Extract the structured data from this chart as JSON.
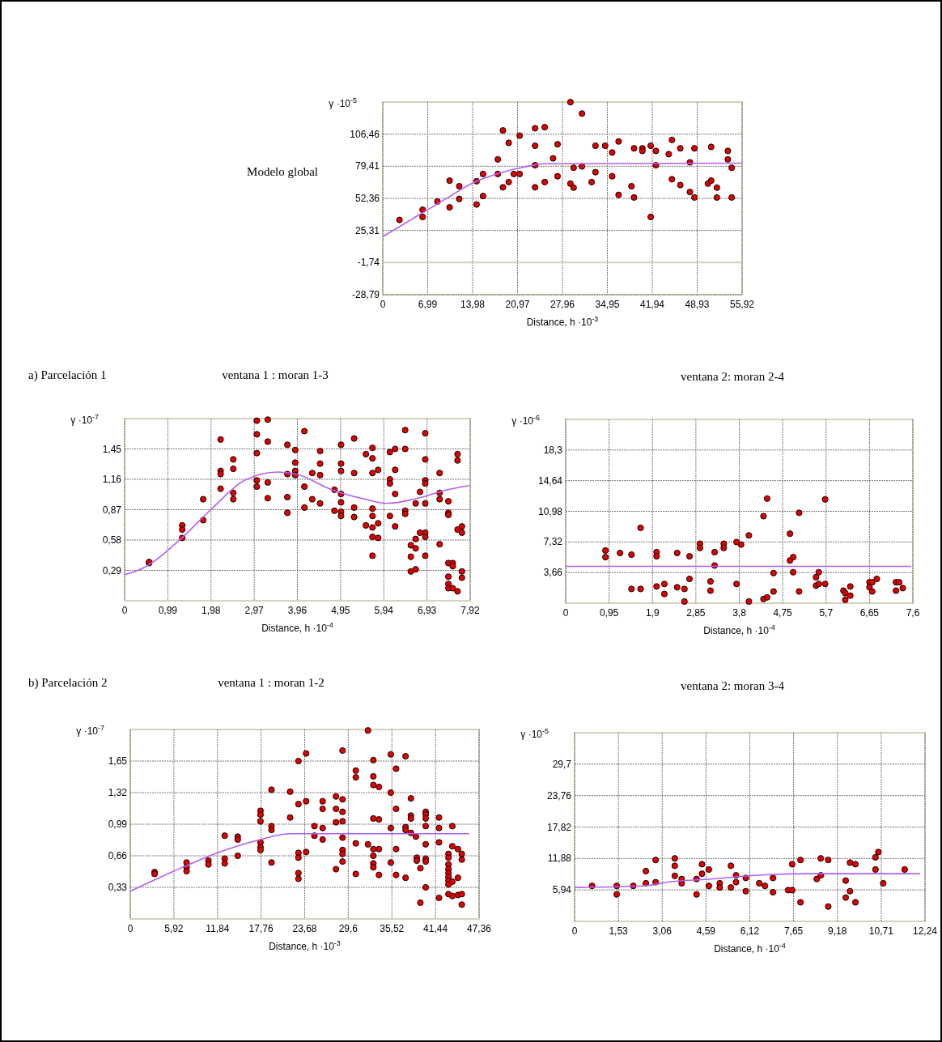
{
  "chart_data": [
    {
      "type": "scatter",
      "title": "Modelo global",
      "ylabel": "γ ·10$^{-5}$",
      "xlabel": "Distance, h ·10$^{-3}$",
      "xlim": [
        0,
        55.92
      ],
      "ylim": [
        -28.79,
        133.51
      ],
      "xticks": [
        {
          "value": 0,
          "label": "0"
        },
        {
          "value": 6.99,
          "label": "6,99"
        },
        {
          "value": 13.98,
          "label": "13,98"
        },
        {
          "value": 20.97,
          "label": "20,97"
        },
        {
          "value": 27.96,
          "label": "27,96"
        },
        {
          "value": 34.95,
          "label": "34,95"
        },
        {
          "value": 41.94,
          "label": "41,94"
        },
        {
          "value": 48.93,
          "label": "48,93"
        },
        {
          "value": 55.92,
          "label": "55,92"
        }
      ],
      "yticks": [
        {
          "value": -28.79,
          "label": "-28,79"
        },
        {
          "value": -1.74,
          "label": "-1,74"
        },
        {
          "value": 25.31,
          "label": "25,31"
        },
        {
          "value": 52.36,
          "label": "52,36"
        },
        {
          "value": 79.41,
          "label": "79,41"
        },
        {
          "value": 106.46,
          "label": "106,46"
        }
      ],
      "grid": true,
      "ref_lines": [
        {
          "axis": "y",
          "value": -1.74,
          "color": "#d6d2bd"
        }
      ],
      "series": [
        {
          "color": "#e00000",
          "marker": "circle",
          "x": [
            2.6,
            6.2,
            6.2,
            8.5,
            10.4,
            10.4,
            11.9,
            11.9,
            14.6,
            14.6,
            15.6,
            15.6,
            17.9,
            17.9,
            18.7,
            18.7,
            19.6,
            19.6,
            20.4,
            21.3,
            21.3,
            23.7,
            23.7,
            23.7,
            23.7,
            25.2,
            25.2,
            26.5,
            27.2,
            27.2,
            29.2,
            29.2,
            29.7,
            29.7,
            31.0,
            31.0,
            32.5,
            33.1,
            33.1,
            34.6,
            35.7,
            35.7,
            36.7,
            36.7,
            38.7,
            39.1,
            39.1,
            40.4,
            40.4,
            41.7,
            41.7,
            42.5,
            42.5,
            44.5,
            45.0,
            45.0,
            46.3,
            46.3,
            47.8,
            47.8,
            48.5,
            48.5,
            50.6,
            51.1,
            51.1,
            52.0,
            52.0,
            53.7,
            53.7,
            54.3,
            54.3
          ],
          "values": [
            34.2,
            42.8,
            36.7,
            49.7,
            67.3,
            44.8,
            62.6,
            51.9,
            66.8,
            47.2,
            72.9,
            54.3,
            85.2,
            72.9,
            109.6,
            61.7,
            99.1,
            66.1,
            72.9,
            105.2,
            72.9,
            111.4,
            96.7,
            80.3,
            61.7,
            112.3,
            66.1,
            86.1,
            97.9,
            71.0,
            133.4,
            64.8,
            78.1,
            61.4,
            123.8,
            79.3,
            66.1,
            96.7,
            74.4,
            96.7,
            91.0,
            71.0,
            100.3,
            55.3,
            62.6,
            94.5,
            53.1,
            94.5,
            92.3,
            96.7,
            36.7,
            92.3,
            80.3,
            89.6,
            101.6,
            68.5,
            94.5,
            63.6,
            82.7,
            57.7,
            94.5,
            53.1,
            64.8,
            95.7,
            67.3,
            61.4,
            53.1,
            92.3,
            85.2,
            78.1,
            53.1
          ]
        },
        {
          "type": "line",
          "color": "#b060f0",
          "x": [
            0,
            6.24,
            10,
            14,
            18,
            22,
            25.2,
            55.92
          ],
          "values": [
            20.1,
            40.4,
            52.6,
            65.3,
            73.4,
            78.8,
            81.5,
            82.0
          ]
        }
      ]
    },
    {
      "type": "scatter",
      "title": "ventana 1 : moran 1-3",
      "annotations": [
        "a) Parcelación 1"
      ],
      "ylabel": "γ ·10$^{-7}$",
      "xlabel": "Distance, h ·10$^{-4}$",
      "xlim": [
        0,
        7.92
      ],
      "ylim": [
        0,
        1.74
      ],
      "xticks": [
        {
          "value": 0,
          "label": "0"
        },
        {
          "value": 0.99,
          "label": "0,99"
        },
        {
          "value": 1.98,
          "label": "1,98"
        },
        {
          "value": 2.97,
          "label": "2,97"
        },
        {
          "value": 3.96,
          "label": "3,96"
        },
        {
          "value": 4.95,
          "label": "4,95"
        },
        {
          "value": 5.94,
          "label": "5,94"
        },
        {
          "value": 6.93,
          "label": "6,93"
        },
        {
          "value": 7.92,
          "label": "7,92"
        }
      ],
      "yticks": [
        {
          "value": 0.29,
          "label": "0,29"
        },
        {
          "value": 0.58,
          "label": "0,58"
        },
        {
          "value": 0.87,
          "label": "0,87"
        },
        {
          "value": 1.16,
          "label": "1,16"
        },
        {
          "value": 1.45,
          "label": "1,45"
        }
      ],
      "grid": true,
      "series": [
        {
          "color": "#e00000",
          "marker": "circle",
          "x": [
            0.56,
            0.56,
            1.32,
            1.32,
            1.32,
            1.8,
            1.8,
            2.2,
            2.2,
            2.2,
            2.2,
            2.49,
            2.49,
            2.49,
            2.49,
            3.03,
            3.03,
            3.03,
            3.03,
            3.03,
            3.28,
            3.28,
            3.28,
            3.28,
            3.73,
            3.73,
            3.73,
            3.73,
            3.91,
            3.91,
            3.91,
            3.91,
            4.12,
            4.12,
            4.12,
            4.3,
            4.3,
            4.48,
            4.48,
            4.48,
            4.48,
            4.81,
            4.81,
            4.96,
            4.96,
            4.96,
            4.96,
            4.96,
            4.96,
            4.96,
            5.26,
            5.26,
            5.26,
            5.26,
            5.53,
            5.53,
            5.68,
            5.68,
            5.68,
            5.68,
            5.68,
            5.68,
            5.68,
            5.68,
            5.81,
            5.81,
            5.81,
            6.08,
            6.08,
            6.08,
            6.08,
            6.2,
            6.2,
            6.2,
            6.2,
            6.43,
            6.43,
            6.43,
            6.43,
            6.56,
            6.56,
            6.56,
            6.67,
            6.67,
            6.67,
            6.67,
            6.77,
            6.77,
            6.89,
            6.89,
            6.89,
            6.89,
            6.89,
            6.89,
            6.89,
            6.89,
            7.22,
            7.22,
            7.22,
            7.22,
            7.42,
            7.42,
            7.42,
            7.42,
            7.42,
            7.42,
            7.42,
            7.52,
            7.52,
            7.52,
            7.63,
            7.63,
            7.63,
            7.63,
            7.73,
            7.73,
            7.73,
            7.73
          ],
          "values": [
            0.36,
            0.37,
            0.72,
            0.68,
            0.6,
            0.77,
            0.97,
            1.54,
            1.24,
            1.21,
            1.07,
            1.35,
            1.26,
            1.03,
            0.97,
            1.72,
            1.59,
            1.41,
            1.15,
            1.09,
            1.73,
            1.52,
            1.13,
            0.98,
            1.49,
            1.21,
            0.99,
            0.84,
            1.44,
            1.32,
            1.24,
            1.2,
            1.62,
            1.09,
            0.89,
            1.22,
            0.97,
            1.43,
            1.31,
            1.2,
            0.93,
            1.06,
            0.86,
            1.49,
            1.31,
            1.24,
            1.02,
            0.94,
            0.85,
            0.81,
            1.55,
            1.22,
            0.89,
            0.8,
            1.4,
            0.72,
            1.46,
            1.36,
            1.22,
            0.88,
            0.81,
            0.7,
            0.61,
            0.43,
            1.25,
            0.74,
            0.6,
            1.42,
            1.16,
            1.12,
            0.81,
            1.45,
            1.25,
            1.02,
            0.71,
            1.63,
            1.45,
            0.86,
            0.83,
            0.53,
            0.42,
            0.28,
            0.59,
            0.5,
            0.3,
            0.93,
            0.65,
            1.04,
            1.6,
            1.35,
            1.15,
            1.12,
            0.93,
            0.65,
            0.61,
            0.43,
            1.22,
            1.03,
            0.97,
            0.54,
            0.95,
            0.84,
            0.82,
            0.36,
            0.23,
            0.16,
            0.12,
            0.36,
            0.33,
            0.12,
            1.4,
            1.34,
            0.68,
            0.09,
            0.71,
            0.65,
            0.28,
            0.22
          ]
        },
        {
          "type": "line",
          "color": "#b060f0",
          "x": [
            0,
            0.41,
            1.31,
            2.0,
            2.75,
            3.51,
            3.93,
            4.75,
            5.51,
            5.99,
            6.82,
            7.3,
            7.89
          ],
          "values": [
            0.25,
            0.31,
            0.6,
            0.88,
            1.15,
            1.23,
            1.21,
            1.06,
            0.97,
            0.93,
            0.99,
            1.05,
            1.1
          ]
        }
      ]
    },
    {
      "type": "scatter",
      "title": "ventana 2: moran 2-4",
      "ylabel": "γ ·10$^{-6}$",
      "xlabel": "Distance, h ·10$^{-4}$",
      "xlim": [
        0,
        7.6
      ],
      "ylim": [
        0,
        21.96
      ],
      "xticks": [
        {
          "value": 0,
          "label": "0"
        },
        {
          "value": 0.95,
          "label": "0,95"
        },
        {
          "value": 1.9,
          "label": "1,9"
        },
        {
          "value": 2.85,
          "label": "2,85"
        },
        {
          "value": 3.8,
          "label": "3,8"
        },
        {
          "value": 4.75,
          "label": "4,75"
        },
        {
          "value": 5.7,
          "label": "5,7"
        },
        {
          "value": 6.65,
          "label": "6,65"
        },
        {
          "value": 7.6,
          "label": "7,6"
        }
      ],
      "yticks": [
        {
          "value": 3.66,
          "label": "3,66"
        },
        {
          "value": 7.32,
          "label": "7,32"
        },
        {
          "value": 10.98,
          "label": "10,98"
        },
        {
          "value": 14.64,
          "label": "14,64"
        },
        {
          "value": 18.3,
          "label": "18,3"
        }
      ],
      "grid": true,
      "series": [
        {
          "color": "#e00000",
          "marker": "circle",
          "x": [
            0.87,
            0.87,
            1.19,
            1.44,
            1.44,
            1.64,
            1.64,
            1.99,
            1.99,
            1.99,
            2.16,
            2.16,
            2.44,
            2.44,
            2.6,
            2.6,
            2.71,
            2.71,
            2.94,
            2.94,
            3.17,
            3.17,
            3.26,
            3.26,
            3.46,
            3.46,
            3.74,
            3.74,
            3.84,
            4.01,
            4.01,
            4.33,
            4.33,
            4.41,
            4.41,
            4.55,
            4.55,
            4.91,
            4.91,
            4.98,
            4.98,
            5.11,
            5.11,
            5.48,
            5.48,
            5.54,
            5.54,
            5.68,
            5.68,
            6.08,
            6.12,
            6.12,
            6.23,
            6.23,
            6.65,
            6.65,
            6.71,
            6.71,
            6.81,
            7.23,
            7.23,
            7.3,
            7.38
          ],
          "values": [
            6.3,
            5.5,
            6.0,
            5.8,
            1.7,
            9.0,
            1.7,
            6.1,
            5.6,
            2.0,
            2.3,
            1.1,
            6.0,
            1.9,
            1.7,
            0.2,
            5.6,
            2.9,
            7.1,
            6.6,
            2.6,
            1.5,
            6.1,
            4.5,
            7.1,
            6.6,
            7.3,
            2.3,
            7.0,
            8.1,
            0.2,
            10.4,
            0.5,
            0.7,
            12.5,
            3.6,
            1.4,
            8.3,
            5.1,
            5.5,
            3.7,
            10.8,
            1.4,
            3.1,
            2.1,
            3.7,
            2.3,
            12.4,
            2.3,
            1.5,
            1.2,
            0.4,
            2.0,
            0.9,
            2.5,
            1.9,
            2.5,
            1.4,
            2.9,
            2.5,
            1.5,
            2.5,
            1.8
          ]
        },
        {
          "type": "line",
          "color": "#b060f0",
          "x": [
            0,
            7.56
          ],
          "values": [
            4.4,
            4.4
          ]
        }
      ]
    },
    {
      "type": "scatter",
      "title": "ventana 1 : moran 1-2",
      "annotations": [
        "b) Parcelación 2"
      ],
      "ylabel": "γ ·10$^{-7}$",
      "xlabel": "Distance, h ·10$^{-3}$",
      "xlim": [
        0,
        47.36
      ],
      "ylim": [
        0,
        1.98
      ],
      "xticks": [
        {
          "value": 0,
          "label": "0"
        },
        {
          "value": 5.92,
          "label": "5,92"
        },
        {
          "value": 11.84,
          "label": "11,84"
        },
        {
          "value": 17.76,
          "label": "17,76"
        },
        {
          "value": 23.68,
          "label": "23,68"
        },
        {
          "value": 29.6,
          "label": "29,6"
        },
        {
          "value": 35.52,
          "label": "35,52"
        },
        {
          "value": 41.44,
          "label": "41,44"
        },
        {
          "value": 47.36,
          "label": "47,36"
        }
      ],
      "yticks": [
        {
          "value": 0.33,
          "label": "0,33"
        },
        {
          "value": 0.66,
          "label": "0,66"
        },
        {
          "value": 0.99,
          "label": "0,99"
        },
        {
          "value": 1.32,
          "label": "1,32"
        },
        {
          "value": 1.65,
          "label": "1,65"
        }
      ],
      "grid": true,
      "series": [
        {
          "color": "#e00000",
          "marker": "circle",
          "x": [
            3.3,
            3.3,
            7.64,
            7.64,
            7.64,
            10.61,
            10.61,
            12.82,
            12.82,
            12.82,
            14.59,
            14.59,
            14.59,
            17.68,
            17.68,
            17.68,
            17.68,
            17.68,
            17.68,
            19.17,
            19.17,
            19.17,
            19.17,
            21.7,
            21.7,
            22.83,
            22.83,
            22.83,
            22.83,
            22.83,
            22.83,
            23.87,
            23.87,
            23.87,
            25.0,
            25.0,
            26.12,
            26.12,
            26.12,
            26.12,
            27.93,
            27.93,
            27.93,
            27.93,
            28.82,
            28.82,
            28.82,
            28.82,
            28.82,
            28.82,
            28.82,
            28.82,
            30.62,
            30.62,
            30.62,
            30.62,
            32.27,
            32.27,
            33.0,
            33.0,
            33.0,
            33.0,
            33.0,
            33.0,
            33.0,
            33.0,
            33.76,
            33.76,
            33.76,
            33.76,
            35.37,
            35.37,
            35.37,
            35.37,
            36.09,
            36.09,
            36.09,
            36.09,
            37.38,
            37.38,
            37.38,
            37.38,
            38.1,
            38.1,
            38.1,
            38.1,
            38.78,
            38.9,
            38.9,
            39.39,
            39.39,
            40.11,
            40.11,
            40.11,
            40.11,
            40.11,
            40.11,
            40.11,
            40.11,
            41.92,
            41.92,
            41.92,
            41.92,
            43.2,
            43.2,
            43.2,
            43.2,
            43.2,
            43.2,
            43.2,
            43.2,
            43.2,
            43.73,
            43.73,
            43.73,
            43.73,
            44.49,
            44.49,
            44.49,
            45.01,
            45.01,
            45.01,
            45.01
          ],
          "values": [
            0.49,
            0.47,
            0.59,
            0.54,
            0.5,
            0.61,
            0.57,
            0.87,
            0.63,
            0.58,
            0.86,
            0.83,
            0.66,
            1.13,
            1.09,
            1.02,
            0.8,
            0.75,
            0.72,
            1.35,
            0.97,
            0.93,
            0.59,
            1.33,
            1.06,
            1.65,
            1.2,
            0.69,
            0.64,
            0.48,
            0.42,
            1.73,
            1.23,
            0.7,
            0.97,
            0.87,
            1.23,
            1.15,
            0.95,
            0.83,
            1.28,
            1.15,
            1.01,
            0.52,
            1.76,
            1.25,
            1.12,
            1.02,
            0.85,
            0.72,
            0.68,
            0.6,
            1.55,
            1.48,
            0.79,
            0.47,
            1.97,
            0.78,
            1.66,
            1.49,
            1.4,
            1.05,
            0.73,
            0.66,
            0.58,
            0.54,
            1.38,
            1.04,
            0.73,
            0.46,
            1.72,
            1.32,
            0.95,
            0.59,
            1.57,
            1.15,
            0.73,
            0.46,
            1.7,
            0.96,
            0.93,
            0.43,
            1.26,
            1.08,
            1.05,
            0.9,
            0.86,
            0.64,
            0.61,
            0.53,
            0.17,
            1.12,
            1.09,
            1.05,
            0.97,
            0.78,
            0.63,
            0.6,
            0.33,
            1.06,
            0.95,
            0.8,
            0.22,
            0.68,
            0.64,
            0.57,
            0.52,
            0.48,
            0.44,
            0.4,
            0.36,
            0.26,
            0.97,
            0.76,
            0.39,
            0.24,
            0.73,
            0.43,
            0.25,
            0.68,
            0.62,
            0.26,
            0.15
          ]
        },
        {
          "type": "line",
          "color": "#b060f0",
          "x": [
            0,
            5.91,
            12.86,
            17.68,
            21.7,
            46.0
          ],
          "values": [
            0.29,
            0.5,
            0.72,
            0.83,
            0.89,
            0.89
          ]
        }
      ]
    },
    {
      "type": "scatter",
      "title": "ventana 2: moran 3-4",
      "ylabel": "γ ·10$^{-5}$",
      "xlabel": "Distance, h ·10$^{-4}$",
      "xlim": [
        0,
        12.24
      ],
      "ylim": [
        0,
        35.64
      ],
      "xticks": [
        {
          "value": 0,
          "label": "0"
        },
        {
          "value": 1.53,
          "label": "1,53"
        },
        {
          "value": 3.06,
          "label": "3,06"
        },
        {
          "value": 4.59,
          "label": "4,59"
        },
        {
          "value": 6.12,
          "label": "6,12"
        },
        {
          "value": 7.65,
          "label": "7,65"
        },
        {
          "value": 9.18,
          "label": "9,18"
        },
        {
          "value": 10.71,
          "label": "10,71"
        },
        {
          "value": 12.24,
          "label": "12,24"
        }
      ],
      "yticks": [
        {
          "value": 5.94,
          "label": "5,94"
        },
        {
          "value": 11.88,
          "label": "11,88"
        },
        {
          "value": 17.82,
          "label": "17,82"
        },
        {
          "value": 23.76,
          "label": "23,76"
        },
        {
          "value": 29.7,
          "label": "29,7"
        }
      ],
      "grid": true,
      "series": [
        {
          "color": "#e00000",
          "marker": "circle",
          "x": [
            0.61,
            1.47,
            1.47,
            2.05,
            2.49,
            2.49,
            2.83,
            2.83,
            3.5,
            3.5,
            3.5,
            3.74,
            3.74,
            4.26,
            4.26,
            4.45,
            4.45,
            4.69,
            4.69,
            5.07,
            5.07,
            5.46,
            5.46,
            5.64,
            5.64,
            5.98,
            5.98,
            6.45,
            6.65,
            6.93,
            6.93,
            7.46,
            7.6,
            7.6,
            7.89,
            7.89,
            8.46,
            8.6,
            8.6,
            8.86,
            8.86,
            9.47,
            9.47,
            9.62,
            9.62,
            9.81,
            9.81,
            10.51,
            10.51,
            10.61,
            10.78,
            11.53
          ],
          "values": [
            6.7,
            6.7,
            5.1,
            6.7,
            9.5,
            7.2,
            11.6,
            7.4,
            11.9,
            10.5,
            8.6,
            8.0,
            7.2,
            8.0,
            5.1,
            10.8,
            9.0,
            9.8,
            6.7,
            7.2,
            6.4,
            10.5,
            6.4,
            8.7,
            7.4,
            8.2,
            5.7,
            7.2,
            6.7,
            8.2,
            5.5,
            5.9,
            5.9,
            10.8,
            11.6,
            3.6,
            8.0,
            8.7,
            11.9,
            11.6,
            2.8,
            7.7,
            4.5,
            11.1,
            5.7,
            10.8,
            3.6,
            12.1,
            9.8,
            13.1,
            7.2,
            9.8
          ]
        },
        {
          "type": "line",
          "color": "#b060f0",
          "x": [
            0,
            2.39,
            3.38,
            4.77,
            6.65,
            8.33,
            12.07
          ],
          "values": [
            6.4,
            6.7,
            7.5,
            8.0,
            8.8,
            9.0,
            9.0
          ]
        }
      ]
    }
  ]
}
